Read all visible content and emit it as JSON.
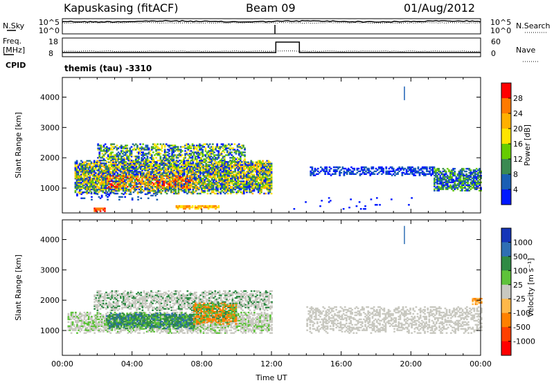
{
  "header": {
    "station": "Kapuskasing (fitACF)",
    "beam": "Beam 09",
    "date": "01/Aug/2012",
    "cpid_label": "CPID",
    "cpid_value": "themis (tau) -3310"
  },
  "chart_data": [
    {
      "type": "line",
      "name": "noise-panel",
      "left_label": "N.Sky",
      "right_label": "N.Search",
      "yticks_left": [
        "10^5",
        "10^0"
      ],
      "yticks_right": [
        "10^5",
        "10^0"
      ]
    },
    {
      "type": "line",
      "name": "freq-panel",
      "left_label": [
        "Freq.",
        "[MHz]"
      ],
      "right_label": "Nave",
      "yticks_left": [
        "18",
        "8"
      ],
      "yticks_right": [
        "60",
        "0"
      ],
      "freq_steps": [
        [
          0,
          12.25,
          10.6
        ],
        [
          12.25,
          13.6,
          16.2
        ],
        [
          13.6,
          24,
          10.6
        ]
      ]
    },
    {
      "type": "heatmap",
      "name": "power",
      "ylabel": "Slant Range [km]",
      "xlim": [
        0,
        24
      ],
      "ylim": [
        180,
        4650
      ],
      "yticks": [
        1000,
        2000,
        3000,
        4000
      ],
      "colorbar_label": "Power [dB]",
      "colorbar_ticks": [
        "28",
        "24",
        "20",
        "16",
        "12",
        "8",
        "4"
      ],
      "colors": [
        "#ff0000",
        "#ff7a00",
        "#ffb000",
        "#ffe400",
        "#66cc00",
        "#3a8a52",
        "#1a5fb4",
        "#0018ff"
      ],
      "regions": [
        {
          "x": [
            0.7,
            12.0
          ],
          "y": [
            800,
            1900
          ],
          "dense": 0.85,
          "levels": [
            2,
            7
          ],
          "hot": [
            [
              2.5,
              7.5,
              950,
              1400
            ]
          ]
        },
        {
          "x": [
            2.0,
            10.5
          ],
          "y": [
            1800,
            2450
          ],
          "dense": 0.55,
          "levels": [
            3,
            7
          ],
          "hot": []
        },
        {
          "x": [
            14.2,
            21.3
          ],
          "y": [
            1400,
            1700
          ],
          "dense": 0.55,
          "levels": [
            6,
            7
          ],
          "hot": []
        },
        {
          "x": [
            21.3,
            24.0
          ],
          "y": [
            900,
            1650
          ],
          "dense": 0.75,
          "levels": [
            4,
            7
          ],
          "hot": []
        },
        {
          "x": [
            0.8,
            5.5
          ],
          "y": [
            600,
            850
          ],
          "dense": 0.18,
          "levels": [
            6,
            7
          ],
          "hot": []
        },
        {
          "x": [
            6.5,
            9.0
          ],
          "y": [
            300,
            420
          ],
          "dense": 0.9,
          "levels": [
            1,
            3
          ],
          "hot": []
        },
        {
          "x": [
            1.8,
            2.4
          ],
          "y": [
            220,
            330
          ],
          "dense": 0.9,
          "levels": [
            0,
            1
          ],
          "hot": []
        },
        {
          "x": [
            12.5,
            20.0
          ],
          "y": [
            250,
            700
          ],
          "dense": 0.03,
          "levels": [
            7,
            7
          ],
          "hot": []
        }
      ],
      "spike_x": 19.6,
      "spike_range": [
        3900,
        4350
      ]
    },
    {
      "type": "heatmap",
      "name": "velocity",
      "ylabel": "Slant Range [km]",
      "xlabel": "Time UT",
      "xlim": [
        0,
        24
      ],
      "ylim": [
        180,
        4650
      ],
      "yticks": [
        1000,
        2000,
        3000,
        4000
      ],
      "xticks": [
        "00:00",
        "04:00",
        "08:00",
        "12:00",
        "16:00",
        "20:00",
        "00:00"
      ],
      "colorbar_label": "Velocity [m s⁻¹]",
      "colorbar_ticks": [
        "1000",
        "500",
        "100",
        "25",
        "-25",
        "-100",
        "-500",
        "-1000"
      ],
      "colors": [
        "#1535b8",
        "#2f6fb4",
        "#2f8a44",
        "#5ec23a",
        "#c8c8c0",
        "#ffb84a",
        "#ff8000",
        "#ff4000",
        "#ff0000"
      ],
      "regions": [
        {
          "x": [
            0.3,
            12.0
          ],
          "y": [
            900,
            1600
          ],
          "dense": 0.7,
          "mix": [
            4,
            4,
            4,
            3
          ]
        },
        {
          "x": [
            1.8,
            12.0
          ],
          "y": [
            1650,
            2300
          ],
          "dense": 0.6,
          "mix": [
            4,
            4,
            4,
            2
          ]
        },
        {
          "x": [
            2.5,
            7.5
          ],
          "y": [
            1050,
            1550
          ],
          "dense": 0.85,
          "mix": [
            2,
            2,
            3,
            1
          ]
        },
        {
          "x": [
            7.5,
            10.0
          ],
          "y": [
            1200,
            1900
          ],
          "dense": 0.8,
          "mix": [
            3,
            6,
            6,
            2
          ]
        },
        {
          "x": [
            14.0,
            24.0
          ],
          "y": [
            900,
            1800
          ],
          "dense": 0.45,
          "mix": [
            4,
            4,
            4,
            4
          ]
        },
        {
          "x": [
            23.5,
            24.0
          ],
          "y": [
            1850,
            2050
          ],
          "dense": 0.7,
          "mix": [
            6,
            5,
            5,
            6
          ]
        }
      ],
      "spike_x": 19.6,
      "spike_range": [
        3850,
        4450
      ]
    }
  ]
}
